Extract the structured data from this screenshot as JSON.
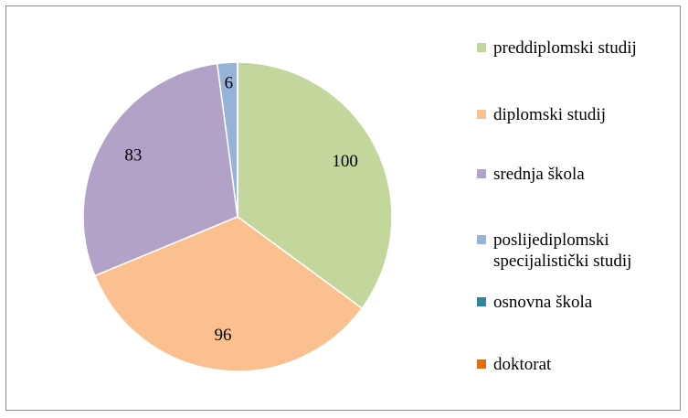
{
  "chart_data": {
    "type": "pie",
    "categories": [
      "preddiplomski studij",
      "diplomski studij",
      "srednja škola",
      "poslijediplomski specijalistički studij",
      "osnovna škola",
      "doktorat"
    ],
    "values": [
      100,
      96,
      83,
      6,
      0,
      0
    ],
    "colors": [
      "#c3d69b",
      "#fac090",
      "#b3a2c7",
      "#95b3d7",
      "#31859c",
      "#e46c0a"
    ],
    "legend": "right"
  }
}
